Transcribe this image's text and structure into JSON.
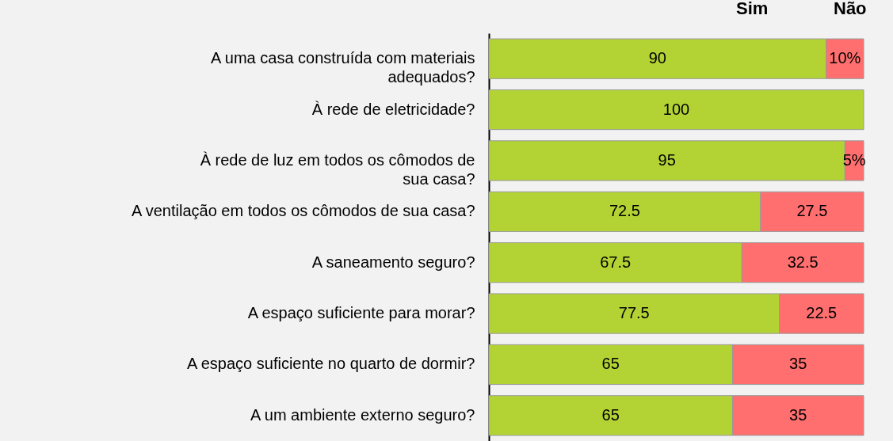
{
  "chart_data": {
    "type": "bar",
    "orientation": "horizontal",
    "stacked": true,
    "legend": "top right",
    "tick_labels": "y",
    "xlim": [
      0,
      100
    ],
    "categories": [
      "A uma casa construída com materiais adequados?",
      "À rede de eletricidade?",
      "À rede de luz em todos os cômodos de sua casa?",
      "A ventilação em todos os cômodos de sua casa?",
      "A saneamento seguro?",
      "A espaço suficiente para morar?",
      "A espaço suficiente no quarto de dormir?",
      "A um ambiente externo seguro?"
    ],
    "series": [
      {
        "name": "Sim",
        "color": "#b3d334",
        "values": [
          90,
          100,
          95,
          72.5,
          67.5,
          77.5,
          65,
          65
        ],
        "value_labels": [
          "90",
          "100",
          "95",
          "72.5",
          "67.5",
          "77.5",
          "65",
          "65"
        ]
      },
      {
        "name": "Não",
        "color": "#ff6f6f",
        "values": [
          10,
          0,
          5,
          27.5,
          32.5,
          22.5,
          35,
          35
        ],
        "value_labels": [
          "10%",
          null,
          "5%",
          "27.5",
          "32.5",
          "22.5",
          "35",
          "35"
        ]
      }
    ]
  }
}
